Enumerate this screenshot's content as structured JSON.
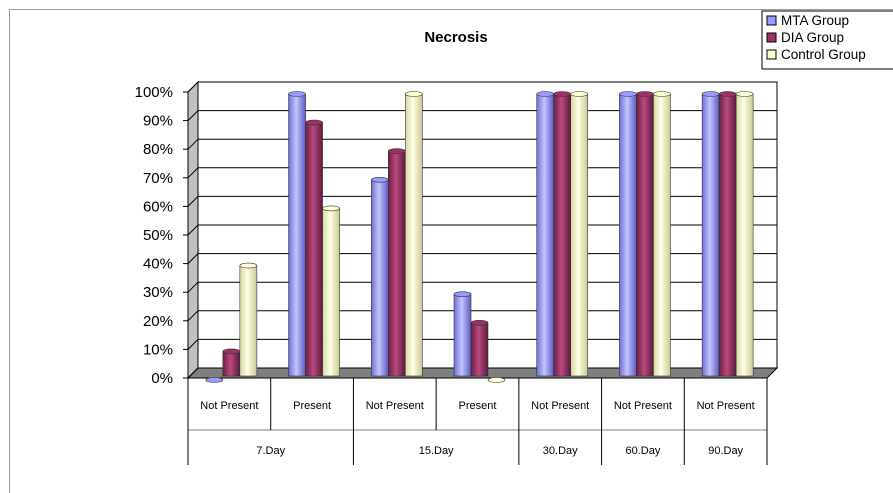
{
  "chart_data": {
    "type": "bar",
    "title": "Necrosis",
    "xlabel": "",
    "ylabel": "",
    "ylim": [
      0,
      100
    ],
    "yticks": [
      "0%",
      "10%",
      "20%",
      "30%",
      "40%",
      "50%",
      "60%",
      "70%",
      "80%",
      "90%",
      "100%"
    ],
    "grid": true,
    "legend_position": "top-right",
    "categories": [
      "Not Present",
      "Present",
      "Not Present",
      "Present",
      "Not Present",
      "Not Present",
      "Not Present"
    ],
    "groups": [
      {
        "label": "7.Day",
        "span": 2
      },
      {
        "label": "15.Day",
        "span": 2
      },
      {
        "label": "30.Day",
        "span": 1
      },
      {
        "label": "60.Day",
        "span": 1
      },
      {
        "label": "90.Day",
        "span": 1
      }
    ],
    "series": [
      {
        "name": "MTA Group",
        "color": "#9999ff",
        "values": [
          0,
          100,
          70,
          30,
          100,
          100,
          100
        ]
      },
      {
        "name": "DIA Group",
        "color": "#993366",
        "values": [
          10,
          90,
          80,
          20,
          100,
          100,
          100
        ]
      },
      {
        "name": "Control Group",
        "color": "#ffffcc",
        "values": [
          40,
          60,
          100,
          0,
          100,
          100,
          100
        ]
      }
    ]
  }
}
